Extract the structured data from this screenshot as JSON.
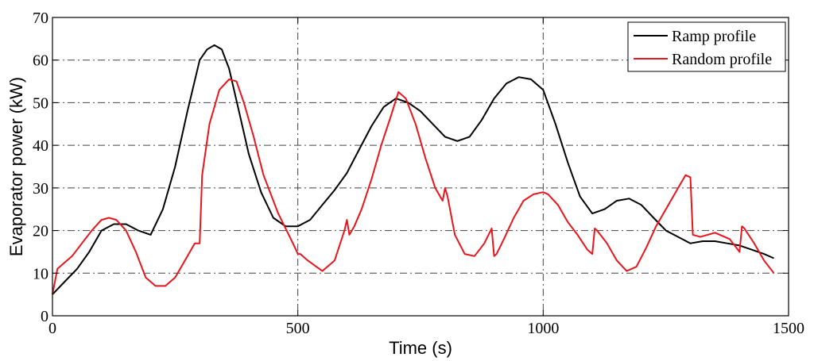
{
  "chart_data": {
    "type": "line",
    "title": "",
    "xlabel": "Time (s)",
    "ylabel": "Evaporator power (kW)",
    "xlim": [
      0,
      1500
    ],
    "ylim": [
      0,
      70
    ],
    "xticks": [
      "0",
      "500",
      "1000",
      "1500"
    ],
    "yticks": [
      "0",
      "10",
      "20",
      "30",
      "40",
      "50",
      "60",
      "70"
    ],
    "grid": true,
    "legend_position": "top-right",
    "series": [
      {
        "name": "Ramp profile",
        "color": "#000000",
        "x": [
          0,
          25,
          50,
          75,
          100,
          125,
          150,
          175,
          200,
          225,
          250,
          275,
          300,
          315,
          330,
          345,
          360,
          380,
          400,
          425,
          450,
          475,
          500,
          525,
          550,
          575,
          600,
          625,
          650,
          675,
          700,
          725,
          750,
          775,
          800,
          825,
          850,
          875,
          900,
          925,
          950,
          975,
          1000,
          1025,
          1050,
          1075,
          1100,
          1125,
          1150,
          1175,
          1200,
          1225,
          1250,
          1275,
          1300,
          1325,
          1350,
          1375,
          1400,
          1425,
          1450,
          1470
        ],
        "y": [
          5,
          8,
          11,
          15,
          20,
          21.5,
          21.5,
          20,
          19,
          25,
          35,
          48,
          60,
          62.5,
          63.5,
          62.5,
          58,
          48,
          38,
          29,
          23,
          21,
          21,
          22.5,
          26,
          29.5,
          33.5,
          39,
          44.5,
          49,
          51,
          50,
          48,
          45,
          42,
          41,
          42,
          46,
          51,
          54.5,
          56,
          55.5,
          53,
          45,
          36,
          28,
          24,
          25,
          27,
          27.5,
          26,
          23,
          20,
          18.5,
          17,
          17.5,
          17.5,
          17,
          16.5,
          15.5,
          14.5,
          13.5
        ]
      },
      {
        "name": "Random profile",
        "color": "#e8151c",
        "x": [
          0,
          10,
          20,
          40,
          60,
          80,
          100,
          115,
          130,
          150,
          170,
          190,
          210,
          230,
          250,
          270,
          290,
          300,
          305,
          320,
          340,
          360,
          375,
          390,
          410,
          430,
          460,
          490,
          500,
          505,
          520,
          550,
          575,
          595,
          600,
          605,
          615,
          630,
          650,
          670,
          690,
          705,
          720,
          740,
          760,
          780,
          795,
          800,
          805,
          820,
          840,
          860,
          880,
          895,
          900,
          905,
          920,
          940,
          960,
          980,
          1000,
          1010,
          1030,
          1050,
          1070,
          1090,
          1100,
          1105,
          1110,
          1130,
          1150,
          1170,
          1190,
          1210,
          1230,
          1260,
          1290,
          1300,
          1305,
          1320,
          1350,
          1380,
          1400,
          1405,
          1410,
          1430,
          1450,
          1470
        ],
        "y": [
          5,
          11,
          12,
          14,
          17,
          20,
          22.5,
          23,
          22.5,
          20,
          15,
          9,
          7,
          7,
          9,
          13,
          17,
          17,
          33,
          45,
          53,
          55.5,
          55,
          50,
          42,
          33,
          24,
          17,
          14.5,
          14.5,
          13,
          10.5,
          13,
          20,
          22.5,
          19,
          21,
          25,
          32,
          40,
          47,
          52.5,
          51,
          45,
          37,
          30,
          27,
          30,
          28,
          19,
          14.5,
          14,
          17,
          20.5,
          14,
          14.5,
          18,
          23,
          27,
          28.5,
          29,
          28.5,
          26,
          22,
          19,
          15.5,
          14.5,
          20.5,
          20,
          17,
          13,
          10.5,
          11.5,
          16,
          21,
          27,
          33,
          32.5,
          19,
          18.5,
          19.5,
          18,
          15,
          21,
          20.5,
          17,
          13,
          10
        ]
      }
    ]
  }
}
